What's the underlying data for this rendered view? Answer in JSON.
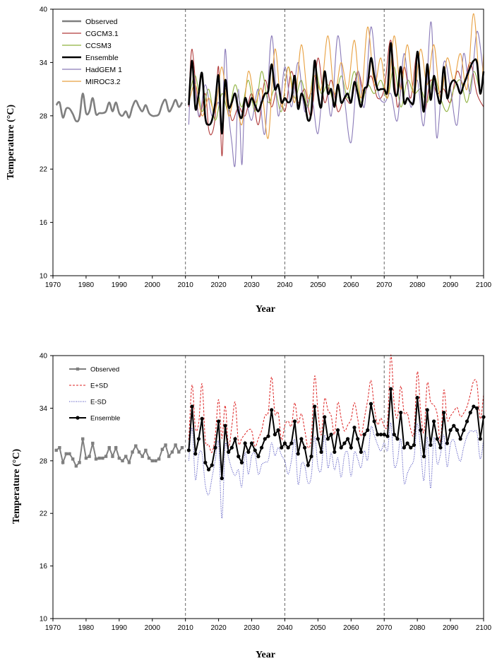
{
  "chart_data": [
    {
      "type": "line",
      "xlabel": "Year",
      "ylabel": "Temperature (°C)",
      "xlim": [
        1970,
        2100
      ],
      "ylim": [
        10,
        40
      ],
      "xticks": [
        1970,
        1980,
        1990,
        2000,
        2010,
        2020,
        2030,
        2040,
        2050,
        2060,
        2070,
        2080,
        2090,
        2100
      ],
      "yticks": [
        10,
        16,
        22,
        28,
        34,
        40
      ],
      "vlines": [
        2010,
        2040,
        2070
      ],
      "legend": "top-left",
      "series": [
        {
          "name": "Observed",
          "color": "#7f7f7f",
          "x": [
            1971,
            1972,
            1973,
            1974,
            1975,
            1976,
            1977,
            1978,
            1979,
            1980,
            1981,
            1982,
            1983,
            1984,
            1985,
            1986,
            1987,
            1988,
            1989,
            1990,
            1991,
            1992,
            1993,
            1994,
            1995,
            1996,
            1997,
            1998,
            1999,
            2000,
            2001,
            2002,
            2003,
            2004,
            2005,
            2006,
            2007,
            2008,
            2009
          ],
          "values": [
            29.2,
            29.5,
            27.8,
            28.8,
            28.8,
            28.2,
            27.4,
            27.8,
            30.5,
            28.3,
            28.5,
            30.0,
            28.2,
            28.3,
            28.3,
            28.5,
            29.5,
            28.5,
            29.5,
            28.3,
            28.0,
            28.5,
            27.8,
            29.0,
            29.7,
            29.0,
            28.5,
            29.2,
            28.3,
            28.0,
            28.0,
            28.2,
            29.3,
            29.8,
            28.5,
            29.0,
            29.8,
            29.0,
            29.5
          ]
        },
        {
          "name": "CGCM3.1",
          "color": "#b03a3a",
          "x": [
            2011,
            2012,
            2014,
            2016,
            2017,
            2018,
            2019,
            2020,
            2021,
            2022,
            2024,
            2026,
            2028,
            2030,
            2032,
            2034,
            2036,
            2038,
            2040,
            2042,
            2044,
            2046,
            2048,
            2050,
            2052,
            2054,
            2056,
            2058,
            2060,
            2062,
            2064,
            2066,
            2068,
            2070,
            2072,
            2074,
            2076,
            2078,
            2080,
            2082,
            2084,
            2086,
            2088,
            2090,
            2092,
            2094,
            2096,
            2098,
            2100
          ],
          "values": [
            29.0,
            35.5,
            28.0,
            30.5,
            26.5,
            26.0,
            28.0,
            33.5,
            23.5,
            31.0,
            27.5,
            29.0,
            28.0,
            30.5,
            27.0,
            32.0,
            29.0,
            31.5,
            28.5,
            33.0,
            29.5,
            31.0,
            28.0,
            34.5,
            29.5,
            32.0,
            28.5,
            30.0,
            29.5,
            33.0,
            30.5,
            32.5,
            30.0,
            31.0,
            36.5,
            29.0,
            33.5,
            30.0,
            35.0,
            28.5,
            32.0,
            30.5,
            31.0,
            29.5,
            33.0,
            31.5,
            34.0,
            30.5,
            29.0
          ]
        },
        {
          "name": "CCSM3",
          "color": "#8fb23f",
          "x": [
            2011,
            2013,
            2015,
            2017,
            2019,
            2021,
            2023,
            2025,
            2027,
            2029,
            2031,
            2033,
            2035,
            2037,
            2039,
            2041,
            2043,
            2045,
            2047,
            2049,
            2051,
            2053,
            2055,
            2057,
            2059,
            2061,
            2063,
            2065,
            2067,
            2069,
            2071,
            2073,
            2075,
            2077,
            2079,
            2081,
            2083,
            2085,
            2087,
            2089,
            2091,
            2093,
            2095,
            2097,
            2099
          ],
          "values": [
            30.0,
            32.5,
            28.5,
            31.0,
            27.5,
            30.5,
            28.5,
            31.5,
            29.0,
            32.0,
            28.5,
            33.0,
            29.5,
            31.0,
            28.5,
            33.5,
            30.0,
            32.0,
            29.0,
            33.5,
            30.5,
            31.5,
            29.5,
            32.5,
            30.0,
            33.0,
            29.5,
            31.5,
            30.5,
            32.0,
            30.0,
            33.5,
            29.0,
            32.0,
            30.5,
            31.0,
            29.5,
            32.5,
            30.0,
            28.5,
            31.0,
            32.0,
            29.5,
            33.0,
            30.5
          ]
        },
        {
          "name": "Ensemble",
          "color": "#000000",
          "x": [
            2011,
            2012,
            2013,
            2014,
            2015,
            2016,
            2017,
            2018,
            2019,
            2020,
            2021,
            2022,
            2023,
            2024,
            2025,
            2026,
            2027,
            2028,
            2029,
            2030,
            2031,
            2032,
            2033,
            2034,
            2035,
            2036,
            2037,
            2038,
            2039,
            2040,
            2041,
            2042,
            2043,
            2044,
            2045,
            2046,
            2047,
            2048,
            2049,
            2050,
            2051,
            2052,
            2053,
            2054,
            2055,
            2056,
            2057,
            2058,
            2059,
            2060,
            2061,
            2062,
            2063,
            2064,
            2065,
            2066,
            2067,
            2068,
            2069,
            2070,
            2071,
            2072,
            2073,
            2074,
            2075,
            2076,
            2077,
            2078,
            2079,
            2080,
            2081,
            2082,
            2083,
            2084,
            2085,
            2086,
            2087,
            2088,
            2089,
            2090,
            2091,
            2092,
            2093,
            2094,
            2095,
            2096,
            2097,
            2098,
            2099,
            2100
          ],
          "values": [
            29.2,
            34.2,
            28.8,
            30.5,
            32.8,
            27.8,
            27.0,
            27.5,
            29.5,
            32.5,
            26.0,
            32.0,
            29.0,
            29.5,
            30.5,
            28.5,
            27.8,
            30.0,
            29.0,
            30.0,
            29.2,
            28.5,
            29.5,
            30.5,
            30.8,
            33.8,
            31.0,
            31.5,
            29.5,
            30.0,
            29.5,
            30.0,
            32.5,
            28.8,
            30.5,
            29.5,
            27.5,
            28.5,
            34.2,
            30.5,
            29.0,
            33.0,
            30.5,
            31.0,
            29.0,
            31.5,
            29.5,
            30.0,
            30.5,
            29.5,
            31.8,
            30.5,
            29.0,
            31.0,
            31.5,
            34.5,
            32.5,
            31.0,
            31.0,
            31.0,
            30.8,
            36.2,
            31.0,
            30.5,
            33.5,
            29.5,
            30.0,
            29.5,
            29.8,
            35.2,
            31.5,
            28.5,
            33.8,
            29.8,
            32.5,
            30.5,
            29.5,
            33.5,
            30.0,
            31.5,
            32.0,
            31.5,
            30.5,
            31.5,
            32.5,
            33.5,
            34.2,
            34.0,
            30.5,
            33.0
          ]
        },
        {
          "name": "HadGEM 1",
          "color": "#8a7ab8",
          "x": [
            2011,
            2012,
            2014,
            2016,
            2018,
            2020,
            2021,
            2022,
            2023,
            2024,
            2025,
            2026,
            2027,
            2028,
            2030,
            2032,
            2034,
            2036,
            2038,
            2040,
            2042,
            2044,
            2046,
            2048,
            2050,
            2052,
            2054,
            2056,
            2058,
            2060,
            2062,
            2064,
            2066,
            2068,
            2070,
            2072,
            2074,
            2076,
            2078,
            2080,
            2082,
            2084,
            2085,
            2086,
            2088,
            2090,
            2092,
            2094,
            2096,
            2098,
            2100
          ],
          "values": [
            27.0,
            34.0,
            28.0,
            31.5,
            28.0,
            29.5,
            26.5,
            35.5,
            28.5,
            25.0,
            22.5,
            31.0,
            22.5,
            29.5,
            27.5,
            31.0,
            26.0,
            37.0,
            28.0,
            33.5,
            29.0,
            34.0,
            28.5,
            30.5,
            26.0,
            33.0,
            28.0,
            37.0,
            30.0,
            25.0,
            33.0,
            29.0,
            38.0,
            31.0,
            29.5,
            30.5,
            27.5,
            35.0,
            29.0,
            32.0,
            27.0,
            38.5,
            32.0,
            25.5,
            34.0,
            31.0,
            27.0,
            35.0,
            30.5,
            37.5,
            32.5
          ]
        },
        {
          "name": "MIROC3.2",
          "color": "#e8a040",
          "x": [
            2011,
            2013,
            2015,
            2017,
            2019,
            2021,
            2023,
            2025,
            2027,
            2029,
            2031,
            2033,
            2035,
            2037,
            2039,
            2041,
            2043,
            2045,
            2047,
            2049,
            2051,
            2053,
            2055,
            2057,
            2059,
            2061,
            2063,
            2065,
            2067,
            2069,
            2071,
            2073,
            2075,
            2077,
            2079,
            2081,
            2083,
            2085,
            2087,
            2089,
            2091,
            2093,
            2095,
            2097,
            2099,
            2100
          ],
          "values": [
            29.5,
            31.5,
            28.0,
            30.0,
            28.5,
            33.5,
            28.0,
            30.5,
            27.0,
            33.0,
            29.5,
            31.0,
            25.5,
            35.5,
            29.0,
            33.5,
            29.5,
            36.0,
            30.0,
            32.5,
            31.0,
            37.0,
            30.5,
            34.0,
            31.0,
            36.5,
            30.0,
            38.0,
            31.5,
            34.5,
            30.0,
            37.0,
            31.0,
            36.0,
            30.5,
            35.5,
            31.5,
            36.0,
            30.0,
            34.5,
            32.0,
            35.0,
            31.0,
            39.5,
            30.5,
            35.0
          ]
        }
      ]
    },
    {
      "type": "line",
      "xlabel": "Year",
      "ylabel": "Temperature (°C)",
      "xlim": [
        1970,
        2100
      ],
      "ylim": [
        10,
        40
      ],
      "xticks": [
        1970,
        1980,
        1990,
        2000,
        2010,
        2020,
        2030,
        2040,
        2050,
        2060,
        2070,
        2080,
        2090,
        2100
      ],
      "yticks": [
        10,
        16,
        22,
        28,
        34,
        40
      ],
      "vlines": [
        2010,
        2040,
        2070
      ],
      "legend": "top-left",
      "series": [
        {
          "name": "Observed",
          "color": "#7f7f7f"
        },
        {
          "name": "E+SD",
          "color": "#dd2222"
        },
        {
          "name": "E-SD",
          "color": "#3b3bb8"
        },
        {
          "name": "Ensemble",
          "color": "#000000"
        }
      ]
    }
  ]
}
